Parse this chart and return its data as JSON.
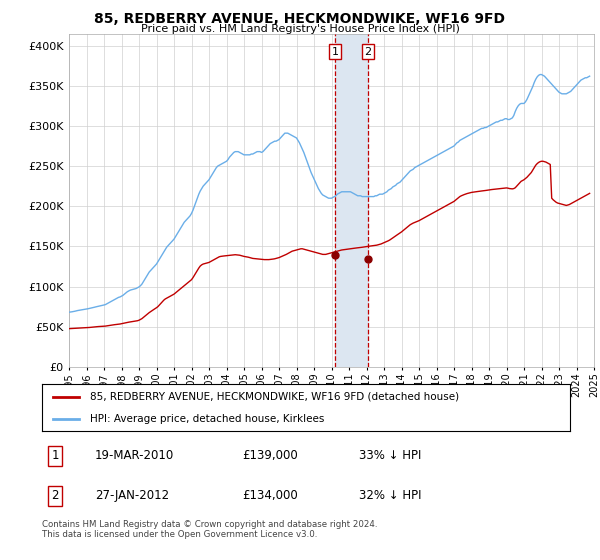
{
  "title": "85, REDBERRY AVENUE, HECKMONDWIKE, WF16 9FD",
  "subtitle": "Price paid vs. HM Land Registry's House Price Index (HPI)",
  "ytick_values": [
    0,
    50000,
    100000,
    150000,
    200000,
    250000,
    300000,
    350000,
    400000
  ],
  "ylim": [
    0,
    415000
  ],
  "xlim_years": [
    1995,
    2025
  ],
  "transaction1": {
    "date": "2010-03-19",
    "price": 139000,
    "label": "1",
    "x_year": 2010.21
  },
  "transaction2": {
    "date": "2012-01-27",
    "price": 134000,
    "label": "2",
    "x_year": 2012.07
  },
  "legend_line1": "85, REDBERRY AVENUE, HECKMONDWIKE, WF16 9FD (detached house)",
  "legend_line2": "HPI: Average price, detached house, Kirklees",
  "table_row1": [
    "1",
    "19-MAR-2010",
    "£139,000",
    "33% ↓ HPI"
  ],
  "table_row2": [
    "2",
    "27-JAN-2012",
    "£134,000",
    "32% ↓ HPI"
  ],
  "footer": "Contains HM Land Registry data © Crown copyright and database right 2024.\nThis data is licensed under the Open Government Licence v3.0.",
  "hpi_color": "#6aaee8",
  "price_color": "#c00000",
  "marker_color": "#8b0000",
  "vline_color": "#c00000",
  "highlight_color": "#dce6f1",
  "hpi_data_years": [
    1995.0,
    1995.083,
    1995.167,
    1995.25,
    1995.333,
    1995.417,
    1995.5,
    1995.583,
    1995.667,
    1995.75,
    1995.833,
    1995.917,
    1996.0,
    1996.083,
    1996.167,
    1996.25,
    1996.333,
    1996.417,
    1996.5,
    1996.583,
    1996.667,
    1996.75,
    1996.833,
    1996.917,
    1997.0,
    1997.083,
    1997.167,
    1997.25,
    1997.333,
    1997.417,
    1997.5,
    1997.583,
    1997.667,
    1997.75,
    1997.833,
    1997.917,
    1998.0,
    1998.083,
    1998.167,
    1998.25,
    1998.333,
    1998.417,
    1998.5,
    1998.583,
    1998.667,
    1998.75,
    1998.833,
    1998.917,
    1999.0,
    1999.083,
    1999.167,
    1999.25,
    1999.333,
    1999.417,
    1999.5,
    1999.583,
    1999.667,
    1999.75,
    1999.833,
    1999.917,
    2000.0,
    2000.083,
    2000.167,
    2000.25,
    2000.333,
    2000.417,
    2000.5,
    2000.583,
    2000.667,
    2000.75,
    2000.833,
    2000.917,
    2001.0,
    2001.083,
    2001.167,
    2001.25,
    2001.333,
    2001.417,
    2001.5,
    2001.583,
    2001.667,
    2001.75,
    2001.833,
    2001.917,
    2002.0,
    2002.083,
    2002.167,
    2002.25,
    2002.333,
    2002.417,
    2002.5,
    2002.583,
    2002.667,
    2002.75,
    2002.833,
    2002.917,
    2003.0,
    2003.083,
    2003.167,
    2003.25,
    2003.333,
    2003.417,
    2003.5,
    2003.583,
    2003.667,
    2003.75,
    2003.833,
    2003.917,
    2004.0,
    2004.083,
    2004.167,
    2004.25,
    2004.333,
    2004.417,
    2004.5,
    2004.583,
    2004.667,
    2004.75,
    2004.833,
    2004.917,
    2005.0,
    2005.083,
    2005.167,
    2005.25,
    2005.333,
    2005.417,
    2005.5,
    2005.583,
    2005.667,
    2005.75,
    2005.833,
    2005.917,
    2006.0,
    2006.083,
    2006.167,
    2006.25,
    2006.333,
    2006.417,
    2006.5,
    2006.583,
    2006.667,
    2006.75,
    2006.833,
    2006.917,
    2007.0,
    2007.083,
    2007.167,
    2007.25,
    2007.333,
    2007.417,
    2007.5,
    2007.583,
    2007.667,
    2007.75,
    2007.833,
    2007.917,
    2008.0,
    2008.083,
    2008.167,
    2008.25,
    2008.333,
    2008.417,
    2008.5,
    2008.583,
    2008.667,
    2008.75,
    2008.833,
    2008.917,
    2009.0,
    2009.083,
    2009.167,
    2009.25,
    2009.333,
    2009.417,
    2009.5,
    2009.583,
    2009.667,
    2009.75,
    2009.833,
    2009.917,
    2010.0,
    2010.083,
    2010.167,
    2010.25,
    2010.333,
    2010.417,
    2010.5,
    2010.583,
    2010.667,
    2010.75,
    2010.833,
    2010.917,
    2011.0,
    2011.083,
    2011.167,
    2011.25,
    2011.333,
    2011.417,
    2011.5,
    2011.583,
    2011.667,
    2011.75,
    2011.833,
    2011.917,
    2012.0,
    2012.083,
    2012.167,
    2012.25,
    2012.333,
    2012.417,
    2012.5,
    2012.583,
    2012.667,
    2012.75,
    2012.833,
    2012.917,
    2013.0,
    2013.083,
    2013.167,
    2013.25,
    2013.333,
    2013.417,
    2013.5,
    2013.583,
    2013.667,
    2013.75,
    2013.833,
    2013.917,
    2014.0,
    2014.083,
    2014.167,
    2014.25,
    2014.333,
    2014.417,
    2014.5,
    2014.583,
    2014.667,
    2014.75,
    2014.833,
    2014.917,
    2015.0,
    2015.083,
    2015.167,
    2015.25,
    2015.333,
    2015.417,
    2015.5,
    2015.583,
    2015.667,
    2015.75,
    2015.833,
    2015.917,
    2016.0,
    2016.083,
    2016.167,
    2016.25,
    2016.333,
    2016.417,
    2016.5,
    2016.583,
    2016.667,
    2016.75,
    2016.833,
    2016.917,
    2017.0,
    2017.083,
    2017.167,
    2017.25,
    2017.333,
    2017.417,
    2017.5,
    2017.583,
    2017.667,
    2017.75,
    2017.833,
    2017.917,
    2018.0,
    2018.083,
    2018.167,
    2018.25,
    2018.333,
    2018.417,
    2018.5,
    2018.583,
    2018.667,
    2018.75,
    2018.833,
    2018.917,
    2019.0,
    2019.083,
    2019.167,
    2019.25,
    2019.333,
    2019.417,
    2019.5,
    2019.583,
    2019.667,
    2019.75,
    2019.833,
    2019.917,
    2020.0,
    2020.083,
    2020.167,
    2020.25,
    2020.333,
    2020.417,
    2020.5,
    2020.583,
    2020.667,
    2020.75,
    2020.833,
    2020.917,
    2021.0,
    2021.083,
    2021.167,
    2021.25,
    2021.333,
    2021.417,
    2021.5,
    2021.583,
    2021.667,
    2021.75,
    2021.833,
    2021.917,
    2022.0,
    2022.083,
    2022.167,
    2022.25,
    2022.333,
    2022.417,
    2022.5,
    2022.583,
    2022.667,
    2022.75,
    2022.833,
    2022.917,
    2023.0,
    2023.083,
    2023.167,
    2023.25,
    2023.333,
    2023.417,
    2023.5,
    2023.583,
    2023.667,
    2023.75,
    2023.833,
    2023.917,
    2024.0,
    2024.083,
    2024.167,
    2024.25,
    2024.333,
    2024.417,
    2024.5,
    2024.583,
    2024.667,
    2024.75
  ],
  "hpi_data_values": [
    68000,
    68200,
    68500,
    68800,
    69200,
    69700,
    70100,
    70400,
    70700,
    71000,
    71200,
    71500,
    72000,
    72300,
    72700,
    73100,
    73500,
    74000,
    74500,
    74900,
    75300,
    75700,
    76100,
    76500,
    77000,
    77500,
    78500,
    79500,
    80500,
    81500,
    82500,
    83500,
    84500,
    85500,
    86500,
    87000,
    88000,
    89000,
    90500,
    92000,
    93500,
    94500,
    95500,
    96000,
    96500,
    97000,
    97500,
    98500,
    99500,
    101000,
    103000,
    106000,
    109000,
    112000,
    115000,
    118000,
    120000,
    122000,
    124000,
    126000,
    128000,
    131000,
    134000,
    137000,
    140000,
    143000,
    146000,
    149000,
    151000,
    153000,
    155000,
    157000,
    159000,
    162000,
    165000,
    168000,
    171000,
    174000,
    177000,
    180000,
    182000,
    184000,
    186000,
    188000,
    191000,
    195000,
    200000,
    205000,
    210000,
    215000,
    219000,
    222000,
    225000,
    227000,
    229000,
    231000,
    233000,
    236000,
    239000,
    242000,
    245000,
    248000,
    250000,
    251000,
    252000,
    253000,
    254000,
    255000,
    256000,
    258000,
    261000,
    263000,
    265000,
    267000,
    268000,
    268000,
    268000,
    267000,
    266000,
    265000,
    264000,
    264000,
    264000,
    264000,
    264000,
    265000,
    265000,
    266000,
    267000,
    268000,
    268000,
    268000,
    267000,
    268000,
    270000,
    272000,
    274000,
    276000,
    278000,
    279000,
    280000,
    281000,
    281000,
    282000,
    283000,
    285000,
    287000,
    289000,
    291000,
    291000,
    291000,
    290000,
    289000,
    288000,
    287000,
    286000,
    285000,
    282000,
    279000,
    275000,
    271000,
    267000,
    262000,
    257000,
    252000,
    247000,
    242000,
    238000,
    234000,
    230000,
    226000,
    222000,
    219000,
    216000,
    214000,
    213000,
    212000,
    211000,
    210000,
    210000,
    210000,
    211000,
    212000,
    213000,
    215000,
    216000,
    217000,
    218000,
    218000,
    218000,
    218000,
    218000,
    218000,
    218000,
    217000,
    216000,
    215000,
    214000,
    213000,
    213000,
    213000,
    212000,
    212000,
    212000,
    212000,
    212000,
    212000,
    212000,
    212000,
    212000,
    213000,
    213000,
    214000,
    215000,
    215000,
    215000,
    216000,
    217000,
    218000,
    220000,
    221000,
    222000,
    224000,
    225000,
    226000,
    228000,
    229000,
    230000,
    232000,
    234000,
    236000,
    238000,
    240000,
    242000,
    244000,
    245000,
    246000,
    248000,
    249000,
    250000,
    251000,
    252000,
    253000,
    254000,
    255000,
    256000,
    257000,
    258000,
    259000,
    260000,
    261000,
    262000,
    263000,
    264000,
    265000,
    266000,
    267000,
    268000,
    269000,
    270000,
    271000,
    272000,
    273000,
    274000,
    275000,
    277000,
    279000,
    280000,
    282000,
    283000,
    284000,
    285000,
    286000,
    287000,
    288000,
    289000,
    290000,
    291000,
    292000,
    293000,
    294000,
    295000,
    296000,
    297000,
    297000,
    298000,
    298000,
    299000,
    300000,
    301000,
    302000,
    303000,
    304000,
    305000,
    305000,
    306000,
    307000,
    307000,
    308000,
    309000,
    309000,
    308000,
    308000,
    309000,
    310000,
    313000,
    318000,
    322000,
    325000,
    327000,
    328000,
    328000,
    328000,
    330000,
    333000,
    337000,
    341000,
    345000,
    349000,
    354000,
    358000,
    361000,
    363000,
    364000,
    364000,
    363000,
    362000,
    360000,
    358000,
    356000,
    354000,
    352000,
    350000,
    348000,
    346000,
    344000,
    342000,
    341000,
    340000,
    340000,
    340000,
    340000,
    341000,
    342000,
    343000,
    345000,
    347000,
    349000,
    351000,
    353000,
    355000,
    357000,
    358000,
    359000,
    360000,
    360000,
    361000,
    362000
  ],
  "price_data_years": [
    1995.0,
    1995.083,
    1995.167,
    1995.25,
    1995.333,
    1995.417,
    1995.5,
    1995.583,
    1995.667,
    1995.75,
    1995.833,
    1995.917,
    1996.0,
    1996.083,
    1996.167,
    1996.25,
    1996.333,
    1996.417,
    1996.5,
    1996.583,
    1996.667,
    1996.75,
    1996.833,
    1996.917,
    1997.0,
    1997.083,
    1997.167,
    1997.25,
    1997.333,
    1997.417,
    1997.5,
    1997.583,
    1997.667,
    1997.75,
    1997.833,
    1997.917,
    1998.0,
    1998.083,
    1998.167,
    1998.25,
    1998.333,
    1998.417,
    1998.5,
    1998.583,
    1998.667,
    1998.75,
    1998.833,
    1998.917,
    1999.0,
    1999.083,
    1999.167,
    1999.25,
    1999.333,
    1999.417,
    1999.5,
    1999.583,
    1999.667,
    1999.75,
    1999.833,
    1999.917,
    2000.0,
    2000.083,
    2000.167,
    2000.25,
    2000.333,
    2000.417,
    2000.5,
    2000.583,
    2000.667,
    2000.75,
    2000.833,
    2000.917,
    2001.0,
    2001.083,
    2001.167,
    2001.25,
    2001.333,
    2001.417,
    2001.5,
    2001.583,
    2001.667,
    2001.75,
    2001.833,
    2001.917,
    2002.0,
    2002.083,
    2002.167,
    2002.25,
    2002.333,
    2002.417,
    2002.5,
    2002.583,
    2002.667,
    2002.75,
    2002.833,
    2002.917,
    2003.0,
    2003.083,
    2003.167,
    2003.25,
    2003.333,
    2003.417,
    2003.5,
    2003.583,
    2003.667,
    2003.75,
    2003.833,
    2003.917,
    2004.0,
    2004.083,
    2004.167,
    2004.25,
    2004.333,
    2004.417,
    2004.5,
    2004.583,
    2004.667,
    2004.75,
    2004.833,
    2004.917,
    2005.0,
    2005.083,
    2005.167,
    2005.25,
    2005.333,
    2005.417,
    2005.5,
    2005.583,
    2005.667,
    2005.75,
    2005.833,
    2005.917,
    2006.0,
    2006.083,
    2006.167,
    2006.25,
    2006.333,
    2006.417,
    2006.5,
    2006.583,
    2006.667,
    2006.75,
    2006.833,
    2006.917,
    2007.0,
    2007.083,
    2007.167,
    2007.25,
    2007.333,
    2007.417,
    2007.5,
    2007.583,
    2007.667,
    2007.75,
    2007.833,
    2007.917,
    2008.0,
    2008.083,
    2008.167,
    2008.25,
    2008.333,
    2008.417,
    2008.5,
    2008.583,
    2008.667,
    2008.75,
    2008.833,
    2008.917,
    2009.0,
    2009.083,
    2009.167,
    2009.25,
    2009.333,
    2009.417,
    2009.5,
    2009.583,
    2009.667,
    2009.75,
    2009.833,
    2009.917,
    2010.0,
    2010.083,
    2010.167,
    2010.25,
    2010.333,
    2010.417,
    2010.5,
    2010.583,
    2010.667,
    2010.75,
    2010.833,
    2010.917,
    2011.0,
    2011.083,
    2011.167,
    2011.25,
    2011.333,
    2011.417,
    2011.5,
    2011.583,
    2011.667,
    2011.75,
    2011.833,
    2011.917,
    2012.0,
    2012.083,
    2012.167,
    2012.25,
    2012.333,
    2012.417,
    2012.5,
    2012.583,
    2012.667,
    2012.75,
    2012.833,
    2012.917,
    2013.0,
    2013.083,
    2013.167,
    2013.25,
    2013.333,
    2013.417,
    2013.5,
    2013.583,
    2013.667,
    2013.75,
    2013.833,
    2013.917,
    2014.0,
    2014.083,
    2014.167,
    2014.25,
    2014.333,
    2014.417,
    2014.5,
    2014.583,
    2014.667,
    2014.75,
    2014.833,
    2014.917,
    2015.0,
    2015.083,
    2015.167,
    2015.25,
    2015.333,
    2015.417,
    2015.5,
    2015.583,
    2015.667,
    2015.75,
    2015.833,
    2015.917,
    2016.0,
    2016.083,
    2016.167,
    2016.25,
    2016.333,
    2016.417,
    2016.5,
    2016.583,
    2016.667,
    2016.75,
    2016.833,
    2016.917,
    2017.0,
    2017.083,
    2017.167,
    2017.25,
    2017.333,
    2017.417,
    2017.5,
    2017.583,
    2017.667,
    2017.75,
    2017.833,
    2017.917,
    2018.0,
    2018.083,
    2018.167,
    2018.25,
    2018.333,
    2018.417,
    2018.5,
    2018.583,
    2018.667,
    2018.75,
    2018.833,
    2018.917,
    2019.0,
    2019.083,
    2019.167,
    2019.25,
    2019.333,
    2019.417,
    2019.5,
    2019.583,
    2019.667,
    2019.75,
    2019.833,
    2019.917,
    2020.0,
    2020.083,
    2020.167,
    2020.25,
    2020.333,
    2020.417,
    2020.5,
    2020.583,
    2020.667,
    2020.75,
    2020.833,
    2020.917,
    2021.0,
    2021.083,
    2021.167,
    2021.25,
    2021.333,
    2021.417,
    2021.5,
    2021.583,
    2021.667,
    2021.75,
    2021.833,
    2021.917,
    2022.0,
    2022.083,
    2022.167,
    2022.25,
    2022.333,
    2022.417,
    2022.5,
    2022.583,
    2022.667,
    2022.75,
    2022.833,
    2022.917,
    2023.0,
    2023.083,
    2023.167,
    2023.25,
    2023.333,
    2023.417,
    2023.5,
    2023.583,
    2023.667,
    2023.75,
    2023.833,
    2023.917,
    2024.0,
    2024.083,
    2024.167,
    2024.25,
    2024.333,
    2024.417,
    2024.5,
    2024.583,
    2024.667,
    2024.75
  ],
  "price_data_values": [
    47500,
    47600,
    47700,
    47800,
    47900,
    48000,
    48100,
    48200,
    48300,
    48400,
    48500,
    48600,
    48700,
    48800,
    49000,
    49200,
    49400,
    49600,
    49800,
    50000,
    50100,
    50200,
    50300,
    50400,
    50500,
    50700,
    51000,
    51300,
    51600,
    51900,
    52200,
    52400,
    52600,
    52800,
    53000,
    53300,
    53700,
    54100,
    54500,
    54900,
    55300,
    55600,
    55900,
    56200,
    56400,
    56700,
    57000,
    57400,
    58000,
    59000,
    60000,
    61500,
    63000,
    64500,
    66000,
    67500,
    68800,
    70000,
    71200,
    72400,
    73600,
    75000,
    77000,
    79000,
    81000,
    83000,
    84500,
    85500,
    86500,
    87500,
    88500,
    89500,
    90500,
    92000,
    93500,
    95000,
    96500,
    98000,
    99500,
    101000,
    102500,
    104000,
    105500,
    107000,
    108500,
    111000,
    114000,
    117000,
    120000,
    123000,
    125500,
    127000,
    128000,
    128500,
    129000,
    129500,
    130000,
    131000,
    132000,
    133000,
    134000,
    135000,
    136000,
    137000,
    137500,
    137800,
    138000,
    138200,
    138400,
    138600,
    138800,
    139000,
    139200,
    139400,
    139600,
    139400,
    139200,
    139000,
    138500,
    138000,
    137500,
    137200,
    136800,
    136500,
    136000,
    135500,
    135000,
    134800,
    134600,
    134400,
    134200,
    134000,
    133800,
    133700,
    133500,
    133500,
    133500,
    133500,
    133700,
    133900,
    134200,
    134500,
    135000,
    135500,
    136000,
    136800,
    137600,
    138400,
    139200,
    140000,
    141000,
    142000,
    143000,
    144000,
    144500,
    145000,
    145500,
    146000,
    146500,
    147000,
    147000,
    146500,
    146000,
    145500,
    145000,
    144500,
    144000,
    143500,
    143000,
    142500,
    142000,
    141500,
    141000,
    140500,
    140000,
    140000,
    140000,
    140500,
    141000,
    141500,
    142000,
    142500,
    143000,
    143500,
    144000,
    144500,
    145000,
    145500,
    145800,
    146000,
    146200,
    146500,
    146800,
    147000,
    147200,
    147500,
    147800,
    148000,
    148200,
    148500,
    148700,
    148900,
    149200,
    149500,
    149800,
    150000,
    150200,
    150500,
    150800,
    151000,
    151200,
    151500,
    152000,
    152500,
    153000,
    153800,
    154600,
    155400,
    156200,
    157000,
    158000,
    159200,
    160500,
    161800,
    163000,
    164300,
    165500,
    166800,
    168000,
    169500,
    171000,
    172500,
    174000,
    175500,
    177000,
    178000,
    179000,
    179800,
    180500,
    181200,
    182000,
    183000,
    184000,
    185000,
    186000,
    187000,
    188000,
    189000,
    190000,
    191000,
    192000,
    193000,
    194000,
    195000,
    196000,
    197000,
    198000,
    199000,
    200000,
    201000,
    202000,
    203000,
    204000,
    205000,
    206000,
    207500,
    209000,
    210500,
    212000,
    213000,
    213800,
    214500,
    215200,
    215800,
    216300,
    216800,
    217200,
    217500,
    217800,
    218000,
    218200,
    218500,
    218800,
    219000,
    219200,
    219500,
    219700,
    220000,
    220300,
    220500,
    220800,
    221000,
    221200,
    221400,
    221600,
    221800,
    222000,
    222200,
    222400,
    222600,
    222800,
    222500,
    222000,
    221800,
    221600,
    222000,
    223000,
    225000,
    227000,
    229000,
    231000,
    232000,
    233000,
    234500,
    236000,
    238000,
    240000,
    242000,
    245000,
    248000,
    251000,
    253000,
    254500,
    255500,
    256000,
    256000,
    255500,
    255000,
    254000,
    253000,
    252000,
    210000,
    208000,
    206500,
    205000,
    204000,
    203500,
    203000,
    202500,
    202000,
    201500,
    201000,
    201500,
    202000,
    203000,
    204000,
    205000,
    206000,
    207000,
    208000,
    209000,
    210000,
    211000,
    212000,
    213000,
    214000,
    215000,
    216000
  ]
}
